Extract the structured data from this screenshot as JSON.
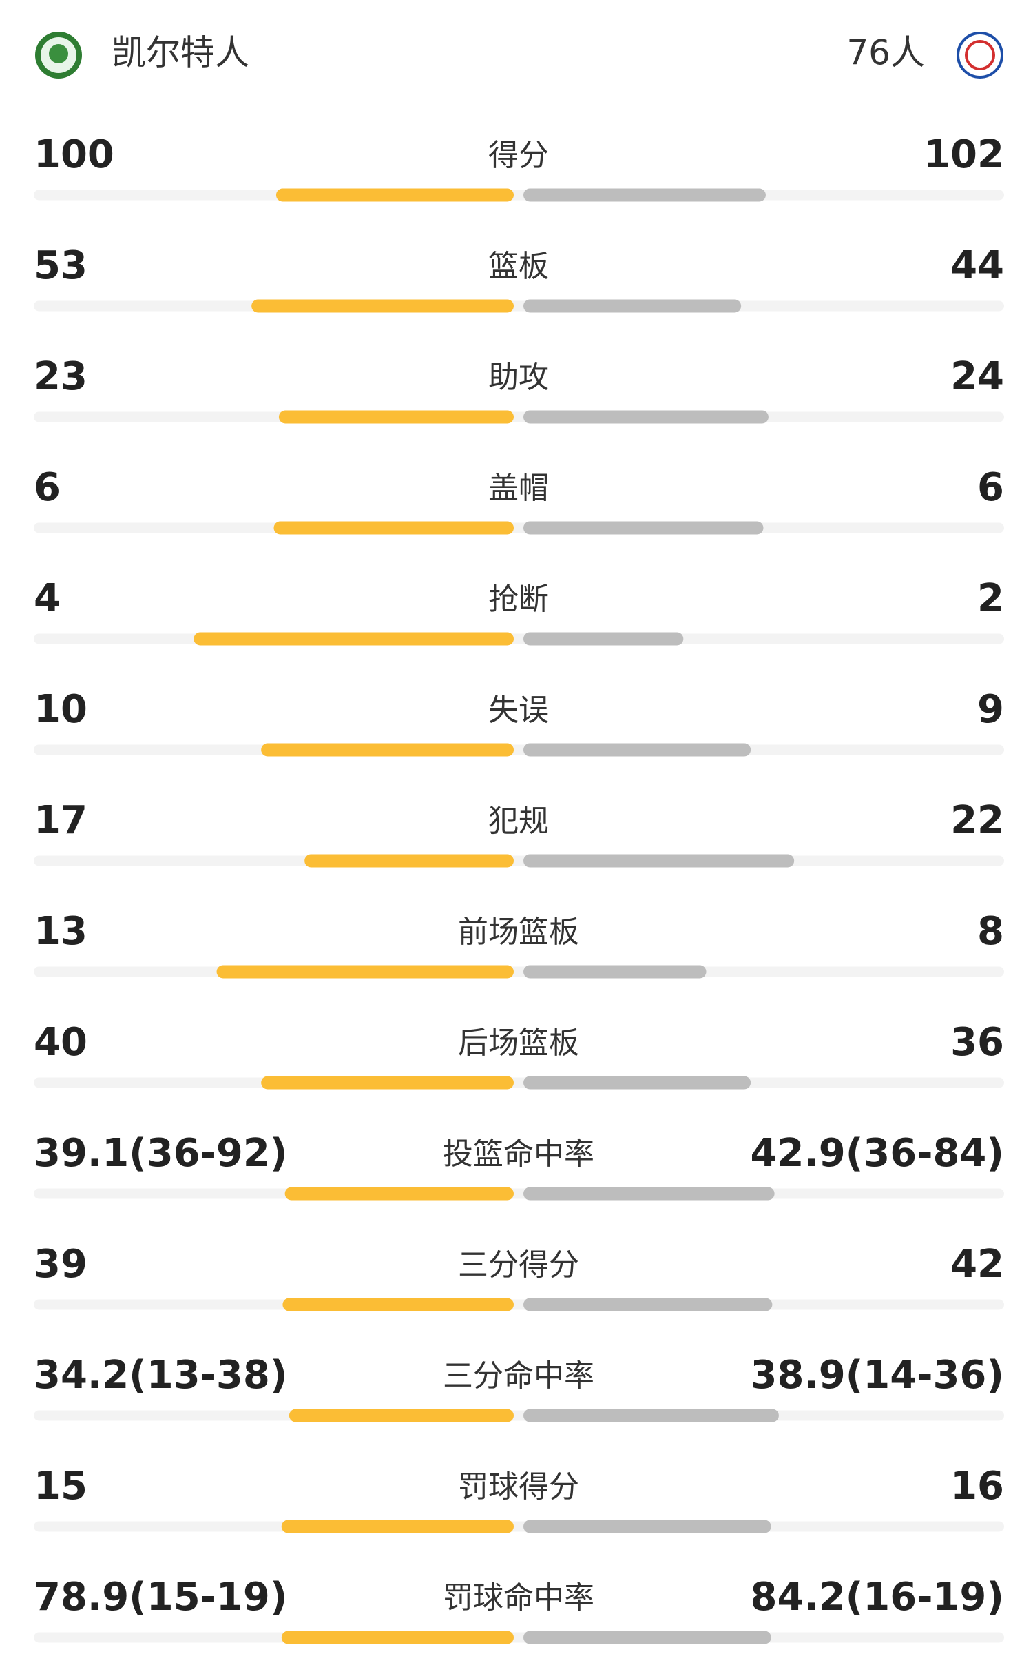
{
  "header": {
    "home": "凯尔特人",
    "away": "76人"
  },
  "stats": [
    {
      "label": "得分",
      "home": 100,
      "away": 102
    },
    {
      "label": "篮板",
      "home": 53,
      "away": 44
    },
    {
      "label": "助攻",
      "home": 23,
      "away": 24
    },
    {
      "label": "盖帽",
      "home": 6,
      "away": 6
    },
    {
      "label": "抢断",
      "home": 4,
      "away": 2
    },
    {
      "label": "失误",
      "home": 10,
      "away": 9
    },
    {
      "label": "犯规",
      "home": 17,
      "away": 22
    },
    {
      "label": "前场篮板",
      "home": 13,
      "away": 8
    },
    {
      "label": "后场篮板",
      "home": 40,
      "away": 36
    },
    {
      "label": "投篮命中率",
      "home": {
        "value": 39.1,
        "label": "39.1(36-92)"
      },
      "away": {
        "value": 42.9,
        "label": "42.9(36-84)"
      }
    },
    {
      "label": "三分得分",
      "home": 39,
      "away": 42
    },
    {
      "label": "三分命中率",
      "home": {
        "value": 34.2,
        "label": "34.2(13-38)"
      },
      "away": {
        "value": 38.9,
        "label": "38.9(14-36)"
      }
    },
    {
      "label": "罚球得分",
      "home": 15,
      "away": 16
    },
    {
      "label": "罚球命中率",
      "home": {
        "value": 78.9,
        "label": "78.9(15-19)"
      },
      "away": {
        "value": 84.2,
        "label": "84.2(16-19)"
      }
    }
  ]
}
